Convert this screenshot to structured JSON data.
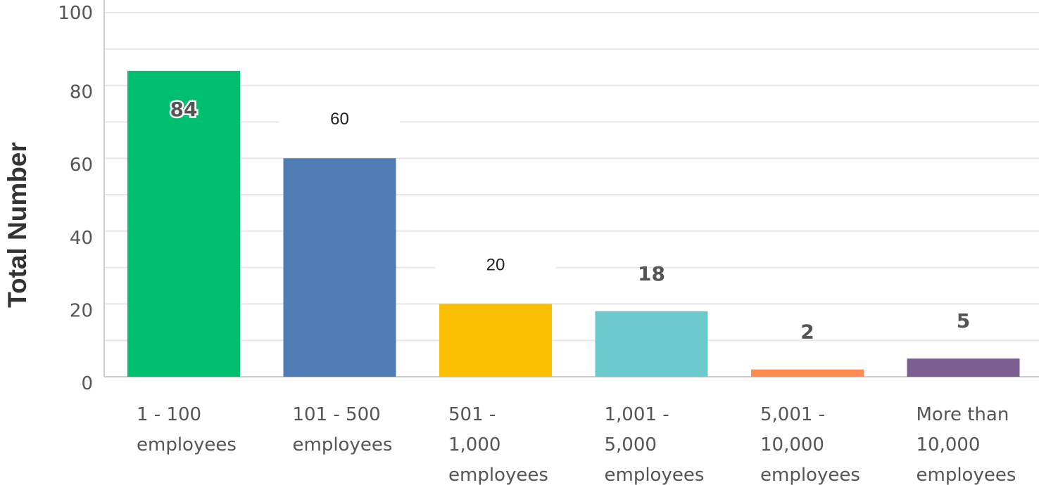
{
  "chart_data": {
    "type": "bar",
    "ylabel": "Total Number",
    "xlabel": "",
    "ylim": [
      0,
      100
    ],
    "yticks": [
      0,
      20,
      40,
      60,
      80,
      100
    ],
    "grid": true,
    "categories": [
      [
        "1 - 100",
        "employees"
      ],
      [
        "101 - 500",
        "employees"
      ],
      [
        "501 -",
        "1,000",
        "employees"
      ],
      [
        "1,001 -",
        "5,000",
        "employees"
      ],
      [
        "5,001 -",
        "10,000",
        "employees"
      ],
      [
        "More than",
        "10,000",
        "employees"
      ]
    ],
    "values": [
      84,
      60,
      20,
      18,
      2,
      5
    ],
    "value_labels": [
      "84",
      "60",
      "20",
      "18",
      "2",
      "5"
    ],
    "colors": [
      "#00BF6F",
      "#507CB6",
      "#F9BE00",
      "#6BC8CD",
      "#FF8B4F",
      "#7D5E90"
    ]
  }
}
